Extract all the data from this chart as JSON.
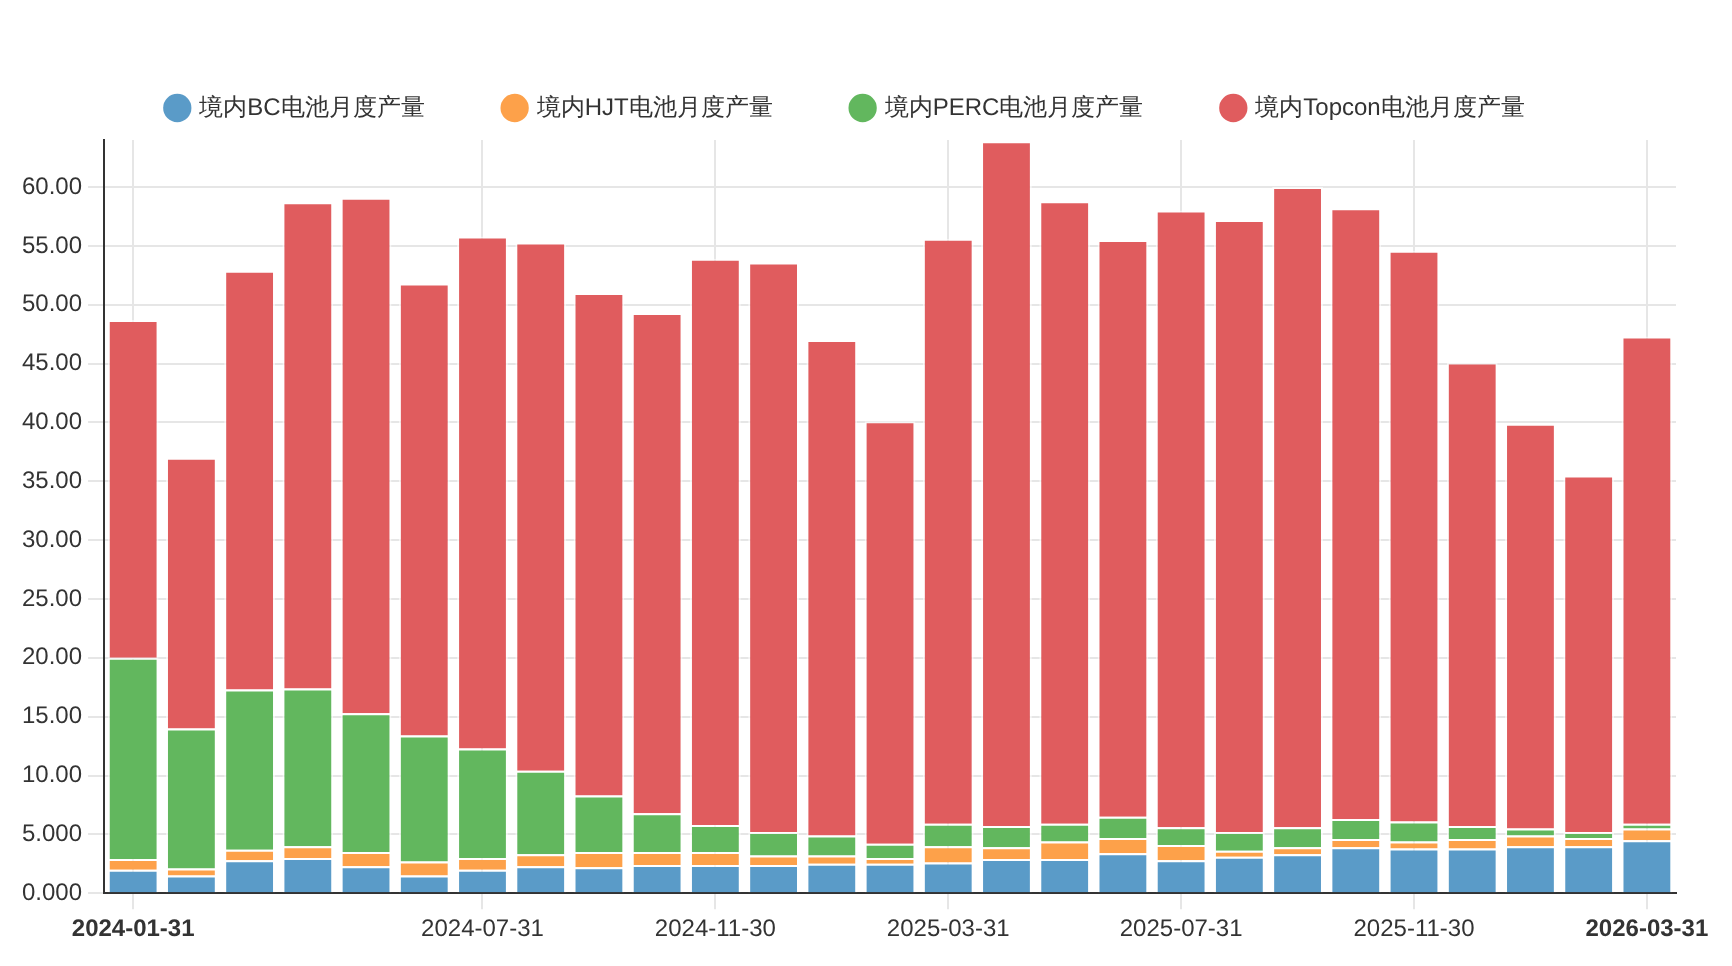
{
  "chart_data": {
    "type": "bar",
    "stacked": true,
    "legend": "top",
    "grid": true,
    "categories": [
      "2024-01-31",
      null,
      null,
      null,
      null,
      null,
      "2024-07-31",
      null,
      null,
      null,
      "2024-11-30",
      null,
      null,
      null,
      "2025-03-31",
      null,
      null,
      null,
      "2025-07-31",
      null,
      null,
      null,
      "2025-11-30",
      null,
      null,
      null,
      "2026-03-31"
    ],
    "ylim": [
      0,
      64
    ],
    "yticks": [
      {
        "value": 0,
        "label": "0.000"
      },
      {
        "value": 5,
        "label": "5.000"
      },
      {
        "value": 10,
        "label": "10.00"
      },
      {
        "value": 15,
        "label": "15.00"
      },
      {
        "value": 20,
        "label": "20.00"
      },
      {
        "value": 25,
        "label": "25.00"
      },
      {
        "value": 30,
        "label": "30.00"
      },
      {
        "value": 35,
        "label": "35.00"
      },
      {
        "value": 40,
        "label": "40.00"
      },
      {
        "value": 45,
        "label": "45.00"
      },
      {
        "value": 50,
        "label": "50.00"
      },
      {
        "value": 55,
        "label": "55.00"
      },
      {
        "value": 60,
        "label": "60.00"
      }
    ],
    "series": [
      {
        "name": "境内BC电池月度产量",
        "color": "#5a9bc8",
        "values": [
          2.0,
          1.5,
          2.8,
          3.0,
          2.3,
          1.5,
          2.0,
          2.3,
          2.2,
          2.4,
          2.4,
          2.4,
          2.5,
          2.5,
          2.6,
          2.9,
          2.9,
          3.4,
          2.8,
          3.1,
          3.3,
          3.9,
          3.8,
          3.8,
          4.0,
          4.0,
          4.5
        ]
      },
      {
        "name": "境内HJT电池月度产量",
        "color": "#fda14a",
        "values": [
          0.9,
          0.6,
          0.9,
          1.0,
          1.2,
          1.2,
          1.0,
          1.0,
          1.3,
          1.1,
          1.1,
          0.8,
          0.7,
          0.5,
          1.4,
          1.0,
          1.5,
          1.3,
          1.3,
          0.5,
          0.6,
          0.7,
          0.6,
          0.8,
          0.9,
          0.7,
          1.0
        ]
      },
      {
        "name": "境内PERC电池月度产量",
        "color": "#62b75e",
        "values": [
          17.1,
          11.9,
          13.6,
          13.4,
          11.8,
          10.7,
          9.3,
          7.1,
          4.8,
          3.3,
          2.3,
          2.0,
          1.7,
          1.2,
          1.9,
          1.8,
          1.5,
          1.8,
          1.5,
          1.6,
          1.7,
          1.7,
          1.7,
          1.1,
          0.6,
          0.5,
          0.4
        ]
      },
      {
        "name": "境内Topcon电池月度产量",
        "color": "#e05c5e",
        "values": [
          28.7,
          23.0,
          35.6,
          41.3,
          43.8,
          38.4,
          43.5,
          44.9,
          42.7,
          42.5,
          48.1,
          48.4,
          42.1,
          35.9,
          49.7,
          58.2,
          52.9,
          49.0,
          52.4,
          52.0,
          54.4,
          51.9,
          48.5,
          39.4,
          34.4,
          30.3,
          41.4
        ]
      }
    ]
  }
}
